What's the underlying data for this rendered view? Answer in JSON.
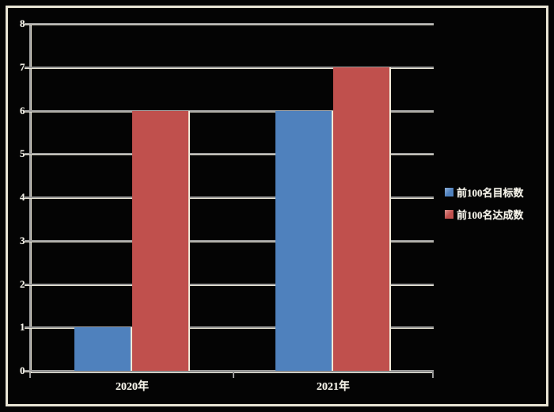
{
  "chart_data": {
    "type": "bar",
    "categories": [
      "2020年",
      "2021年"
    ],
    "series": [
      {
        "name": "前100名目标数",
        "color": "#4f81bd",
        "values": [
          1,
          6
        ]
      },
      {
        "name": "前100名达成数",
        "color": "#c0504d",
        "values": [
          6,
          7
        ]
      }
    ],
    "title": "",
    "xlabel": "",
    "ylabel": "",
    "ylim": [
      0,
      8
    ],
    "yticks": [
      0,
      1,
      2,
      3,
      4,
      5,
      6,
      7,
      8
    ],
    "ytick_labels": [
      "0",
      "1",
      "2",
      "3",
      "4",
      "5",
      "6",
      "7",
      "8"
    ],
    "grid": true,
    "legend_position": "right"
  },
  "colors": {
    "background": "#040404",
    "frame_border": "#e9e5d6",
    "gridline": "#9c9c9c",
    "gridline_highlight": "#e6e2d3",
    "bar_edge": "#f0ead9",
    "text": "#f4f2e8",
    "series_target": "#4f81bd",
    "series_achieved": "#c0504d"
  },
  "legend": {
    "items": [
      {
        "label": "前100名目标数",
        "color": "#4f81bd",
        "marker": "square-icon"
      },
      {
        "label": "前100名达成数",
        "color": "#c0504d",
        "marker": "square-icon"
      }
    ]
  }
}
